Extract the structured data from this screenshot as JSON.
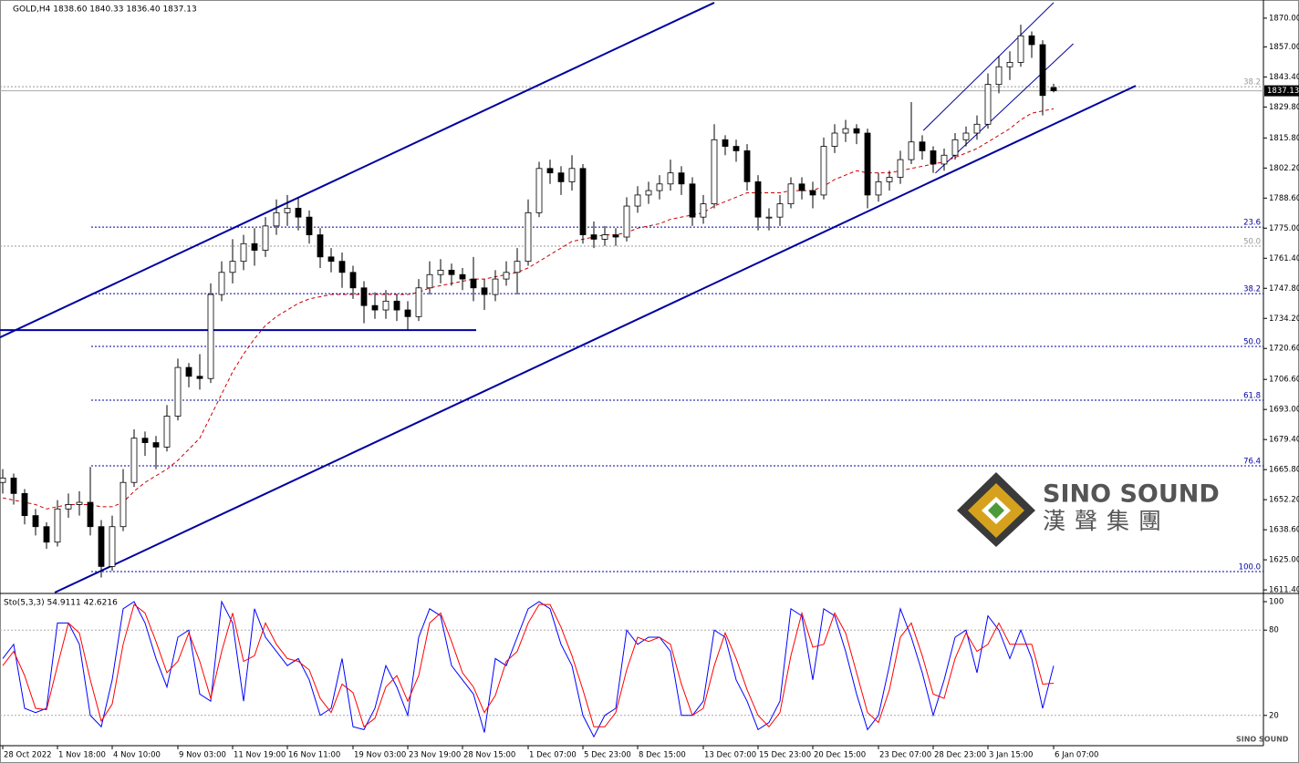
{
  "chart_data": {
    "type": "candlestick",
    "header": "GOLD,H4  1838.60 1840.33 1836.40 1837.13",
    "ylim": [
      1610.2,
      1878.2
    ],
    "yticks": [
      {
        "value": 1870,
        "label": "1870.00"
      },
      {
        "value": 1857,
        "label": "1857.00"
      },
      {
        "value": 1843.4,
        "label": "1843.40"
      },
      {
        "value": 1829.8,
        "label": "1829.80"
      },
      {
        "value": 1815.8,
        "label": "1815.80"
      },
      {
        "value": 1802.2,
        "label": "1802.20"
      },
      {
        "value": 1788.6,
        "label": "1788.60"
      },
      {
        "value": 1775,
        "label": "1775.00"
      },
      {
        "value": 1761.4,
        "label": "1761.40"
      },
      {
        "value": 1747.8,
        "label": "1747.80"
      },
      {
        "value": 1734.2,
        "label": "1734.20"
      },
      {
        "value": 1720.6,
        "label": "1720.60"
      },
      {
        "value": 1706.6,
        "label": "1706.60"
      },
      {
        "value": 1693,
        "label": "1693.00"
      },
      {
        "value": 1679.4,
        "label": "1679.40"
      },
      {
        "value": 1665.8,
        "label": "1665.80"
      },
      {
        "value": 1652.2,
        "label": "1652.20"
      },
      {
        "value": 1638.6,
        "label": "1638.60"
      },
      {
        "value": 1625,
        "label": "1625.00"
      },
      {
        "value": 1611.4,
        "label": "1611.40"
      }
    ],
    "current_price": 1837.13,
    "categories": [
      "28 Oct 2022",
      null,
      null,
      null,
      null,
      "1 Nov 18:00",
      null,
      null,
      null,
      null,
      "4 Nov 10:00",
      null,
      null,
      null,
      null,
      null,
      "9 Nov 03:00",
      null,
      null,
      null,
      null,
      "11 Nov 19:00",
      null,
      null,
      null,
      null,
      "16 Nov 11:00",
      null,
      null,
      null,
      null,
      null,
      "19 Nov 03:00",
      null,
      null,
      null,
      null,
      "23 Nov 19:00",
      null,
      null,
      null,
      null,
      "28 Nov 15:00",
      null,
      null,
      null,
      null,
      null,
      "1 Dec 07:00",
      null,
      null,
      null,
      null,
      "5 Dec 23:00",
      null,
      null,
      null,
      null,
      "8 Dec 15:00",
      null,
      null,
      null,
      null,
      null,
      "13 Dec 07:00",
      null,
      null,
      null,
      null,
      "15 Dec 23:00",
      null,
      null,
      null,
      null,
      "20 Dec 15:00",
      null,
      null,
      null,
      null,
      null,
      "23 Dec 07:00",
      null,
      null,
      null,
      null,
      "28 Dec 23:00",
      null,
      null,
      null,
      null,
      "3 Jan 15:00",
      null,
      null,
      null,
      null,
      null,
      "6 Jan 07:00"
    ],
    "ohlc": [
      [
        1660,
        1666,
        1655,
        1662
      ],
      [
        1662,
        1664,
        1650,
        1655
      ],
      [
        1655,
        1657,
        1641,
        1645
      ],
      [
        1645,
        1648,
        1636,
        1640
      ],
      [
        1640,
        1642,
        1630,
        1633
      ],
      [
        1633,
        1652,
        1631,
        1648
      ],
      [
        1648,
        1655,
        1644,
        1650
      ],
      [
        1650,
        1656,
        1645,
        1651
      ],
      [
        1651,
        1667,
        1636,
        1640
      ],
      [
        1640,
        1643,
        1617,
        1622
      ],
      [
        1622,
        1645,
        1620,
        1640
      ],
      [
        1640,
        1666,
        1638,
        1660
      ],
      [
        1660,
        1684,
        1658,
        1680
      ],
      [
        1680,
        1683,
        1672,
        1678
      ],
      [
        1678,
        1681,
        1666,
        1676
      ],
      [
        1676,
        1695,
        1674,
        1690
      ],
      [
        1690,
        1716,
        1688,
        1712
      ],
      [
        1712,
        1714,
        1703,
        1708
      ],
      [
        1708,
        1718,
        1702,
        1707
      ],
      [
        1707,
        1750,
        1705,
        1745
      ],
      [
        1745,
        1760,
        1742,
        1755
      ],
      [
        1755,
        1770,
        1750,
        1760
      ],
      [
        1760,
        1772,
        1756,
        1768
      ],
      [
        1768,
        1775,
        1758,
        1765
      ],
      [
        1765,
        1780,
        1762,
        1776
      ],
      [
        1776,
        1788,
        1772,
        1782
      ],
      [
        1782,
        1790,
        1776,
        1784
      ],
      [
        1784,
        1789,
        1774,
        1780
      ],
      [
        1780,
        1783,
        1768,
        1772
      ],
      [
        1772,
        1775,
        1757,
        1762
      ],
      [
        1762,
        1766,
        1755,
        1760
      ],
      [
        1760,
        1764,
        1748,
        1755
      ],
      [
        1755,
        1758,
        1743,
        1748
      ],
      [
        1748,
        1751,
        1732,
        1740
      ],
      [
        1740,
        1746,
        1734,
        1738
      ],
      [
        1738,
        1747,
        1734,
        1742
      ],
      [
        1742,
        1745,
        1733,
        1738
      ],
      [
        1738,
        1742,
        1729,
        1735
      ],
      [
        1735,
        1752,
        1733,
        1748
      ],
      [
        1748,
        1760,
        1745,
        1754
      ],
      [
        1754,
        1761,
        1750,
        1756
      ],
      [
        1756,
        1759,
        1749,
        1754
      ],
      [
        1754,
        1757,
        1747,
        1752
      ],
      [
        1752,
        1762,
        1742,
        1748
      ],
      [
        1748,
        1752,
        1738,
        1745
      ],
      [
        1745,
        1756,
        1742,
        1752
      ],
      [
        1752,
        1760,
        1749,
        1755
      ],
      [
        1755,
        1766,
        1745,
        1760
      ],
      [
        1760,
        1788,
        1758,
        1782
      ],
      [
        1782,
        1805,
        1780,
        1802
      ],
      [
        1802,
        1806,
        1795,
        1800
      ],
      [
        1800,
        1803,
        1790,
        1796
      ],
      [
        1796,
        1808,
        1792,
        1802
      ],
      [
        1802,
        1804,
        1768,
        1772
      ],
      [
        1772,
        1778,
        1766,
        1770
      ],
      [
        1770,
        1776,
        1767,
        1772
      ],
      [
        1772,
        1775,
        1767,
        1771
      ],
      [
        1771,
        1789,
        1769,
        1785
      ],
      [
        1785,
        1794,
        1782,
        1790
      ],
      [
        1790,
        1796,
        1786,
        1792
      ],
      [
        1792,
        1799,
        1788,
        1795
      ],
      [
        1795,
        1806,
        1792,
        1800
      ],
      [
        1800,
        1803,
        1790,
        1795
      ],
      [
        1795,
        1798,
        1776,
        1780
      ],
      [
        1780,
        1790,
        1777,
        1786
      ],
      [
        1786,
        1822,
        1784,
        1815
      ],
      [
        1815,
        1817,
        1808,
        1812
      ],
      [
        1812,
        1815,
        1805,
        1810
      ],
      [
        1810,
        1813,
        1792,
        1796
      ],
      [
        1796,
        1799,
        1774,
        1780
      ],
      [
        1780,
        1784,
        1774,
        1780
      ],
      [
        1780,
        1790,
        1776,
        1786
      ],
      [
        1786,
        1798,
        1784,
        1795
      ],
      [
        1795,
        1798,
        1788,
        1792
      ],
      [
        1792,
        1796,
        1784,
        1790
      ],
      [
        1790,
        1816,
        1788,
        1812
      ],
      [
        1812,
        1822,
        1809,
        1818
      ],
      [
        1818,
        1824,
        1814,
        1820
      ],
      [
        1820,
        1822,
        1813,
        1818
      ],
      [
        1818,
        1820,
        1784,
        1790
      ],
      [
        1790,
        1800,
        1787,
        1796
      ],
      [
        1796,
        1801,
        1792,
        1798
      ],
      [
        1798,
        1810,
        1795,
        1806
      ],
      [
        1806,
        1832,
        1804,
        1814
      ],
      [
        1814,
        1817,
        1806,
        1810
      ],
      [
        1810,
        1812,
        1800,
        1804
      ],
      [
        1804,
        1811,
        1801,
        1808
      ],
      [
        1808,
        1818,
        1806,
        1815
      ],
      [
        1815,
        1821,
        1812,
        1818
      ],
      [
        1818,
        1826,
        1815,
        1822
      ],
      [
        1822,
        1845,
        1820,
        1840
      ],
      [
        1840,
        1853,
        1836,
        1848
      ],
      [
        1848,
        1855,
        1842,
        1850
      ],
      [
        1850,
        1867,
        1848,
        1862
      ],
      [
        1862,
        1864,
        1852,
        1858
      ],
      [
        1858,
        1860,
        1826,
        1835
      ],
      [
        1838.6,
        1840.33,
        1836.4,
        1837.13
      ]
    ],
    "ma": {
      "color": "#cc0000",
      "values": [
        1653,
        1652,
        1651,
        1650,
        1648,
        1649,
        1650,
        1650,
        1650,
        1649,
        1649,
        1651,
        1656,
        1660,
        1663,
        1666,
        1670,
        1675,
        1680,
        1690,
        1700,
        1710,
        1718,
        1725,
        1731,
        1735,
        1738,
        1741,
        1743,
        1744,
        1745,
        1745,
        1745,
        1745,
        1745,
        1745,
        1745,
        1745,
        1746,
        1748,
        1749,
        1750,
        1751,
        1752,
        1752,
        1753,
        1754,
        1755,
        1757,
        1760,
        1763,
        1766,
        1769,
        1770,
        1771,
        1772,
        1772,
        1773,
        1775,
        1776,
        1777,
        1779,
        1780,
        1781,
        1782,
        1785,
        1787,
        1789,
        1791,
        1791,
        1791,
        1791,
        1792,
        1792,
        1792,
        1794,
        1797,
        1799,
        1801,
        1800,
        1800,
        1800,
        1801,
        1802,
        1803,
        1804,
        1805,
        1807,
        1809,
        1811,
        1814,
        1817,
        1820,
        1824,
        1827,
        1828,
        1829
      ]
    },
    "trendline_color": "#0000a0",
    "trendlines": [
      {
        "x": [
          -0.25,
          65
        ],
        "y": [
          1725.6,
          1877
        ],
        "width": 2
      },
      {
        "x": [
          4.75,
          103.5
        ],
        "y": [
          1610.2,
          1839.4
        ],
        "width": 2
      },
      {
        "x": [
          -0.25,
          43.25
        ],
        "y": [
          1728.9,
          1728.9
        ],
        "width": 2
      },
      {
        "x": [
          84.1,
          96
        ],
        "y": [
          1819.2,
          1877
        ],
        "width": 1
      },
      {
        "x": [
          85.2,
          97.8
        ],
        "y": [
          1799.9,
          1858.4
        ],
        "width": 1
      }
    ],
    "fib_levels": [
      {
        "label": "38.2",
        "price": 1839,
        "color": "#999999"
      },
      {
        "label": "23.6",
        "price": 1775.5,
        "color": "#0000a0"
      },
      {
        "label": "50.0",
        "price": 1766.9,
        "color": "#999999"
      },
      {
        "label": "38.2",
        "price": 1745.4,
        "color": "#0000a0"
      },
      {
        "label": "50.0",
        "price": 1721.5,
        "color": "#0000a0"
      },
      {
        "label": "61.8",
        "price": 1697.2,
        "color": "#0000a0"
      },
      {
        "label": "76.4",
        "price": 1667.5,
        "color": "#0000a0"
      },
      {
        "label": "100.0",
        "price": 1619.7,
        "color": "#0000a0"
      }
    ],
    "stochastic": {
      "title": "Sto(5,3,3) 54.9111 42.6216",
      "ylim": [
        -1.3,
        104.5
      ],
      "yticks": [
        100,
        80,
        20
      ],
      "levels": [
        80,
        20
      ],
      "series": [
        {
          "color": "#0000ff",
          "values": [
            60,
            70,
            25,
            22,
            25,
            85,
            85,
            70,
            20,
            12,
            45,
            95,
            100,
            85,
            60,
            40,
            75,
            80,
            35,
            30,
            100,
            85,
            30,
            95,
            75,
            65,
            55,
            60,
            45,
            20,
            25,
            60,
            12,
            10,
            25,
            55,
            40,
            20,
            75,
            95,
            90,
            55,
            45,
            35,
            8,
            60,
            55,
            75,
            95,
            100,
            95,
            70,
            55,
            20,
            5,
            20,
            25,
            80,
            70,
            75,
            75,
            65,
            20,
            20,
            30,
            80,
            75,
            45,
            30,
            10,
            15,
            30,
            95,
            90,
            45,
            95,
            90,
            65,
            35,
            10,
            20,
            55,
            95,
            75,
            50,
            20,
            45,
            75,
            80,
            50,
            90,
            80,
            60,
            80,
            60,
            25,
            54.9111
          ]
        },
        {
          "color": "#ff0000",
          "values": [
            55,
            65,
            48,
            25,
            24,
            55,
            85,
            78,
            45,
            16,
            28,
            70,
            98,
            92,
            72,
            50,
            58,
            78,
            58,
            32,
            65,
            92,
            58,
            62,
            85,
            70,
            60,
            58,
            52,
            32,
            22,
            42,
            36,
            12,
            18,
            40,
            48,
            30,
            48,
            85,
            92,
            72,
            50,
            40,
            22,
            34,
            58,
            65,
            85,
            98,
            98,
            82,
            62,
            38,
            12,
            12,
            22,
            52,
            75,
            72,
            75,
            70,
            42,
            20,
            25,
            55,
            78,
            60,
            38,
            20,
            12,
            22,
            62,
            92,
            68,
            70,
            92,
            78,
            50,
            22,
            15,
            38,
            75,
            85,
            62,
            35,
            32,
            60,
            78,
            65,
            70,
            85,
            70,
            70,
            70,
            42,
            42.6216
          ]
        }
      ]
    }
  },
  "logo": {
    "name": "SINO SOUND",
    "chinese": "漢聲集團",
    "footer": "SINO SOUND"
  }
}
